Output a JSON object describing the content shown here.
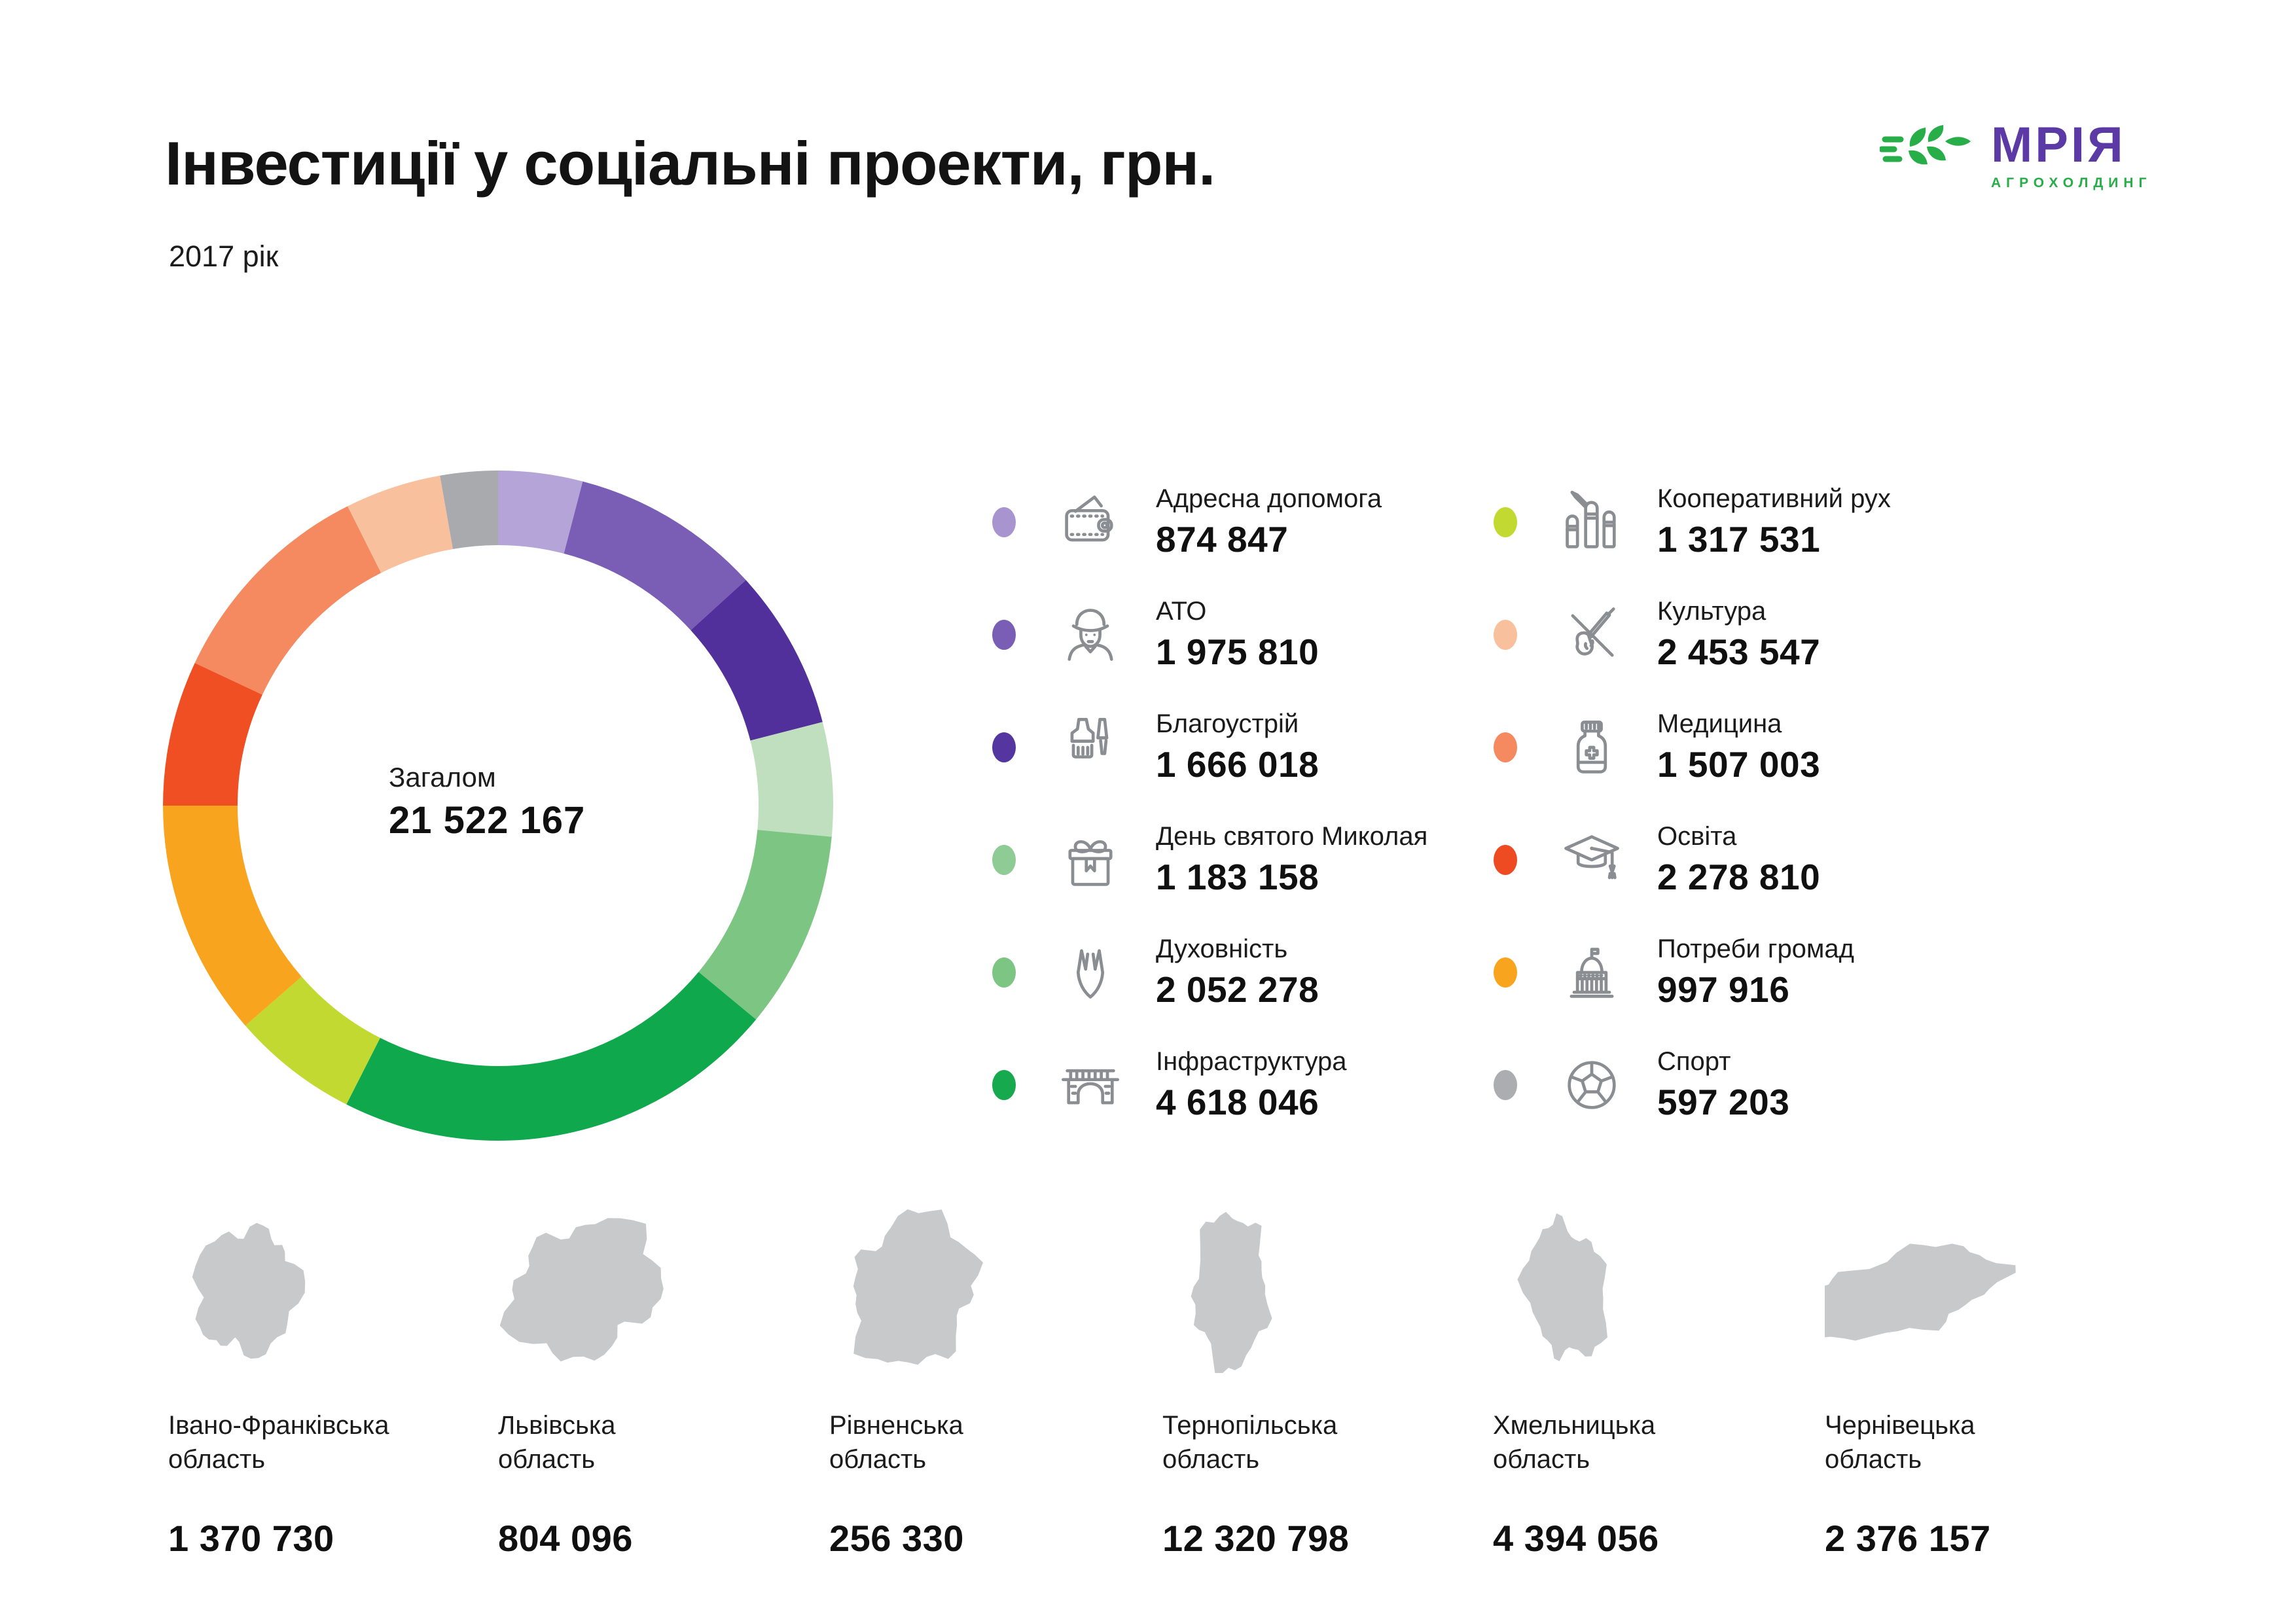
{
  "header": {
    "title": "Інвестиції у соціальні проекти, грн.",
    "subtitle": "2017 рік"
  },
  "logo": {
    "brand": "МРІЯ",
    "sub": "АГРОХОЛДИНГ",
    "brand_color": "#5b3aa6",
    "sub_color": "#27ae49"
  },
  "donut": {
    "center_label": "Загалом",
    "center_value": "21 522 167"
  },
  "chart_data": [
    {
      "type": "pie",
      "subtype": "donut",
      "title": "Інвестиції у соціальні проекти, грн.",
      "subtitle": "2017 рік",
      "center_label": "Загалом",
      "total": 21522167,
      "order": "clockwise-from-top",
      "legend_position": "right, two columns",
      "segments": [
        {
          "label": "Адресна допомога",
          "value": 874847,
          "display": "874 847",
          "segment_color": "#b4a4d8",
          "dot_color": "#a895d0",
          "icon": "wallet-icon"
        },
        {
          "label": "АТО",
          "value": 1975810,
          "display": "1 975 810",
          "segment_color": "#7a5eb5",
          "dot_color": "#7a5eb5",
          "icon": "soldier-icon"
        },
        {
          "label": "Благоустрій",
          "value": 1666018,
          "display": "1 666 018",
          "segment_color": "#52309b",
          "dot_color": "#5535a0",
          "icon": "paintbrush-icon"
        },
        {
          "label": "День святого Миколая",
          "value": 1183158,
          "display": "1 183 158",
          "segment_color": "#c0dfbe",
          "dot_color": "#8fcb94",
          "icon": "gift-icon"
        },
        {
          "label": "Духовність",
          "value": 2052278,
          "display": "2 052 278",
          "segment_color": "#7cc583",
          "dot_color": "#7cc583",
          "icon": "praying-hands-icon"
        },
        {
          "label": "Інфраструктура",
          "value": 4618046,
          "display": "4 618 046",
          "segment_color": "#10a84c",
          "dot_color": "#17a94e",
          "icon": "bridge-icon"
        },
        {
          "label": "Кооперативний рух",
          "value": 1317531,
          "display": "1 317 531",
          "segment_color": "#c1d930",
          "dot_color": "#c1d930",
          "icon": "fists-icon"
        },
        {
          "label": "Культура",
          "value": 2453547,
          "display": "2 453 547",
          "segment_color": "#f9a41e",
          "dot_color": "#f9c09e",
          "icon": "violin-icon"
        },
        {
          "label": "Медицина",
          "value": 1507003,
          "display": "1 507 003",
          "segment_color": "#f04f23",
          "dot_color": "#f58a61",
          "icon": "medicine-icon"
        },
        {
          "label": "Освіта",
          "value": 2278810,
          "display": "2 278 810",
          "segment_color": "#f58a61",
          "dot_color": "#ee4b23",
          "icon": "graduation-icon"
        },
        {
          "label": "Потреби громад",
          "value": 997916,
          "display": "997 916",
          "segment_color": "#f9c09e",
          "dot_color": "#f9a41e",
          "icon": "government-icon"
        },
        {
          "label": "Спорт",
          "value": 597203,
          "display": "597 203",
          "segment_color": "#a8aaad",
          "dot_color": "#abadb0",
          "icon": "soccer-icon"
        }
      ]
    },
    {
      "type": "table",
      "categories": [
        "Івано-Франківська область",
        "Львівська область",
        "Рівненська область",
        "Тернопільська область",
        "Хмельницька область",
        "Чернівецька область"
      ],
      "values": [
        1370730,
        804096,
        256330,
        12320798,
        4394056,
        2376157
      ]
    }
  ],
  "regions": [
    {
      "name": "Івано-Франківська",
      "name2": "область",
      "value": 1370730,
      "display": "1 370 730"
    },
    {
      "name": "Львівська",
      "name2": "область",
      "value": 804096,
      "display": "804 096"
    },
    {
      "name": "Рівненська",
      "name2": "область",
      "value": 256330,
      "display": "256 330"
    },
    {
      "name": "Тернопільська",
      "name2": "область",
      "value": 12320798,
      "display": "12 320 798"
    },
    {
      "name": "Хмельницька",
      "name2": "область",
      "value": 4394056,
      "display": "4 394 056"
    },
    {
      "name": "Чернівецька",
      "name2": "область",
      "value": 2376157,
      "display": "2 376 157"
    }
  ],
  "map_color": "#c7c9cb",
  "icon_color": "#8a8d91"
}
